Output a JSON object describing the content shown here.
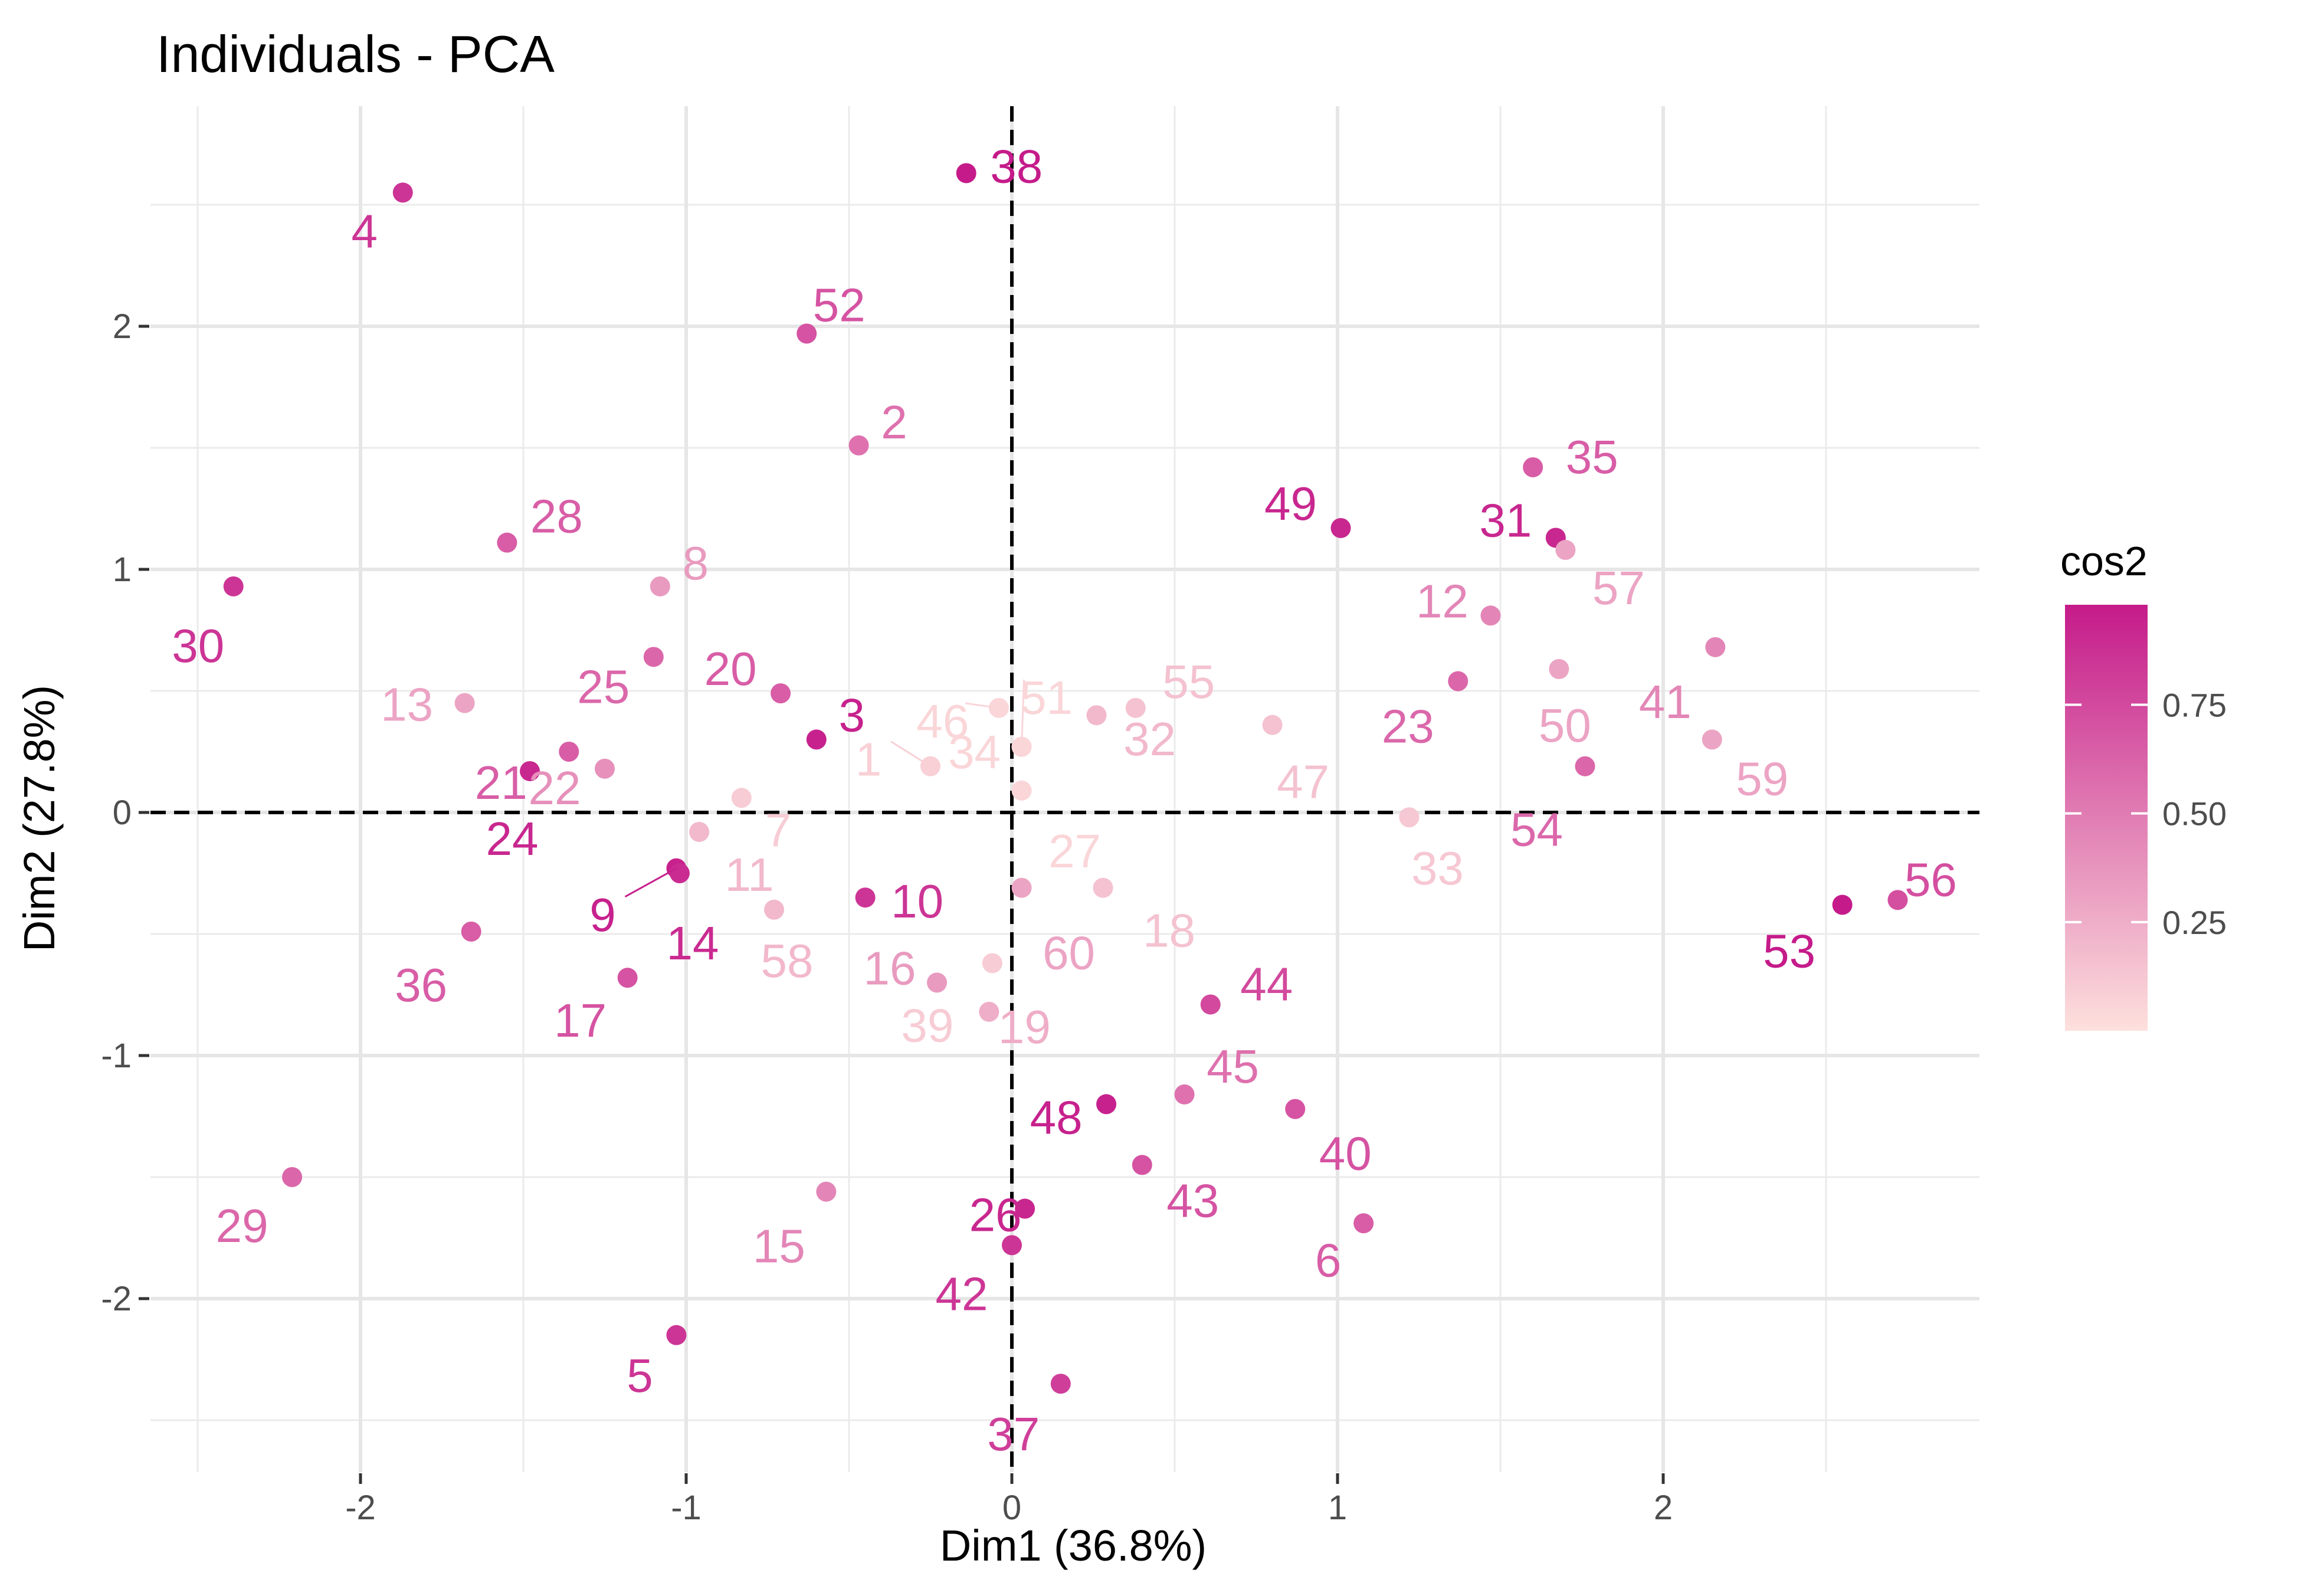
{
  "chart_data": {
    "type": "scatter",
    "title": "Individuals - PCA",
    "xlabel": "Dim1 (36.8%)",
    "ylabel": "Dim2 (27.8%)",
    "xlim": [
      -2.6,
      2.95
    ],
    "ylim": [
      -2.62,
      2.8
    ],
    "x_ticks": [
      -2,
      -1,
      0,
      1,
      2
    ],
    "x_tick_labels": [
      "-2",
      "-1",
      "0",
      "1",
      "2"
    ],
    "y_ticks": [
      -2,
      -1,
      0,
      1,
      2
    ],
    "y_tick_labels": [
      "-2",
      "-1",
      "0",
      "1",
      "2"
    ],
    "grid": true,
    "reference_lines": {
      "x": 0,
      "y": 0,
      "style": "dashed"
    },
    "color_scale": {
      "name": "cos2",
      "low_color": "#fde0dd",
      "high_color": "#c51b8a",
      "range": [
        0.0,
        0.98
      ],
      "ticks": [
        0.25,
        0.5,
        0.75
      ],
      "tick_labels": [
        "0.25",
        "0.50",
        "0.75"
      ],
      "legend_position": "right"
    },
    "points": [
      {
        "label": "1",
        "x": -0.25,
        "y": 0.19,
        "cos2": 0.08
      },
      {
        "label": "2",
        "x": -0.47,
        "y": 1.51,
        "cos2": 0.55
      },
      {
        "label": "3",
        "x": -0.6,
        "y": 0.3,
        "cos2": 0.95
      },
      {
        "label": "4",
        "x": -1.87,
        "y": 2.55,
        "cos2": 0.85
      },
      {
        "label": "5",
        "x": -1.03,
        "y": -2.15,
        "cos2": 0.85
      },
      {
        "label": "6",
        "x": 1.08,
        "y": -1.69,
        "cos2": 0.65
      },
      {
        "label": "7",
        "x": -0.83,
        "y": 0.06,
        "cos2": 0.1
      },
      {
        "label": "8",
        "x": -1.08,
        "y": 0.93,
        "cos2": 0.35
      },
      {
        "label": "9",
        "x": -1.03,
        "y": -0.23,
        "cos2": 0.95
      },
      {
        "label": "10",
        "x": -0.45,
        "y": -0.35,
        "cos2": 0.85
      },
      {
        "label": "11",
        "x": -0.96,
        "y": -0.08,
        "cos2": 0.2
      },
      {
        "label": "12",
        "x": 1.47,
        "y": 0.81,
        "cos2": 0.45
      },
      {
        "label": "13",
        "x": -1.68,
        "y": 0.45,
        "cos2": 0.3
      },
      {
        "label": "14",
        "x": -1.02,
        "y": -0.25,
        "cos2": 0.9
      },
      {
        "label": "15",
        "x": -0.57,
        "y": -1.56,
        "cos2": 0.45
      },
      {
        "label": "16",
        "x": -0.23,
        "y": -0.7,
        "cos2": 0.35
      },
      {
        "label": "17",
        "x": -1.18,
        "y": -0.68,
        "cos2": 0.7
      },
      {
        "label": "18",
        "x": 0.28,
        "y": -0.31,
        "cos2": 0.15
      },
      {
        "label": "19",
        "x": -0.07,
        "y": -0.82,
        "cos2": 0.25
      },
      {
        "label": "20",
        "x": -0.71,
        "y": 0.49,
        "cos2": 0.65
      },
      {
        "label": "21",
        "x": -1.36,
        "y": 0.25,
        "cos2": 0.65
      },
      {
        "label": "22",
        "x": -1.25,
        "y": 0.18,
        "cos2": 0.4
      },
      {
        "label": "23",
        "x": 1.37,
        "y": 0.54,
        "cos2": 0.6
      },
      {
        "label": "24",
        "x": -1.48,
        "y": 0.17,
        "cos2": 0.92
      },
      {
        "label": "25",
        "x": -1.1,
        "y": 0.64,
        "cos2": 0.6
      },
      {
        "label": "26",
        "x": 0.04,
        "y": -1.63,
        "cos2": 0.92
      },
      {
        "label": "27",
        "x": 0.03,
        "y": 0.09,
        "cos2": 0.05
      },
      {
        "label": "28",
        "x": -1.55,
        "y": 1.11,
        "cos2": 0.65
      },
      {
        "label": "29",
        "x": -2.21,
        "y": -1.5,
        "cos2": 0.6
      },
      {
        "label": "30",
        "x": -2.39,
        "y": 0.93,
        "cos2": 0.85
      },
      {
        "label": "31",
        "x": 1.67,
        "y": 1.13,
        "cos2": 0.92
      },
      {
        "label": "32",
        "x": 0.26,
        "y": 0.4,
        "cos2": 0.2
      },
      {
        "label": "33",
        "x": 1.22,
        "y": -0.02,
        "cos2": 0.12
      },
      {
        "label": "34",
        "x": 0.03,
        "y": 0.27,
        "cos2": 0.05
      },
      {
        "label": "35",
        "x": 1.6,
        "y": 1.42,
        "cos2": 0.65
      },
      {
        "label": "36",
        "x": -1.66,
        "y": -0.49,
        "cos2": 0.65
      },
      {
        "label": "37",
        "x": 0.15,
        "y": -2.35,
        "cos2": 0.8
      },
      {
        "label": "38",
        "x": -0.14,
        "y": 2.63,
        "cos2": 0.98
      },
      {
        "label": "39",
        "x": -0.06,
        "y": -0.62,
        "cos2": 0.1
      },
      {
        "label": "40",
        "x": 0.87,
        "y": -1.22,
        "cos2": 0.7
      },
      {
        "label": "41",
        "x": 2.16,
        "y": 0.68,
        "cos2": 0.45
      },
      {
        "label": "42",
        "x": 0.0,
        "y": -1.78,
        "cos2": 0.85
      },
      {
        "label": "43",
        "x": 0.4,
        "y": -1.45,
        "cos2": 0.7
      },
      {
        "label": "44",
        "x": 0.61,
        "y": -0.79,
        "cos2": 0.75
      },
      {
        "label": "45",
        "x": 0.53,
        "y": -1.16,
        "cos2": 0.55
      },
      {
        "label": "46",
        "x": -0.04,
        "y": 0.43,
        "cos2": 0.05
      },
      {
        "label": "47",
        "x": 0.8,
        "y": 0.36,
        "cos2": 0.15
      },
      {
        "label": "48",
        "x": 0.29,
        "y": -1.2,
        "cos2": 0.95
      },
      {
        "label": "49",
        "x": 1.01,
        "y": 1.17,
        "cos2": 0.92
      },
      {
        "label": "50",
        "x": 1.68,
        "y": 0.59,
        "cos2": 0.3
      },
      {
        "label": "51",
        "x": 0.03,
        "y": 0.27,
        "cos2": 0.05
      },
      {
        "label": "52",
        "x": -0.63,
        "y": 1.97,
        "cos2": 0.7
      },
      {
        "label": "53",
        "x": 2.55,
        "y": -0.38,
        "cos2": 0.98
      },
      {
        "label": "54",
        "x": 1.76,
        "y": 0.19,
        "cos2": 0.6
      },
      {
        "label": "55",
        "x": 0.38,
        "y": 0.43,
        "cos2": 0.15
      },
      {
        "label": "56",
        "x": 2.72,
        "y": -0.36,
        "cos2": 0.72
      },
      {
        "label": "57",
        "x": 1.7,
        "y": 1.08,
        "cos2": 0.3
      },
      {
        "label": "58",
        "x": -0.73,
        "y": -0.4,
        "cos2": 0.2
      },
      {
        "label": "59",
        "x": 2.15,
        "y": 0.3,
        "cos2": 0.3
      },
      {
        "label": "60",
        "x": 0.03,
        "y": -0.31,
        "cos2": 0.3
      }
    ]
  }
}
